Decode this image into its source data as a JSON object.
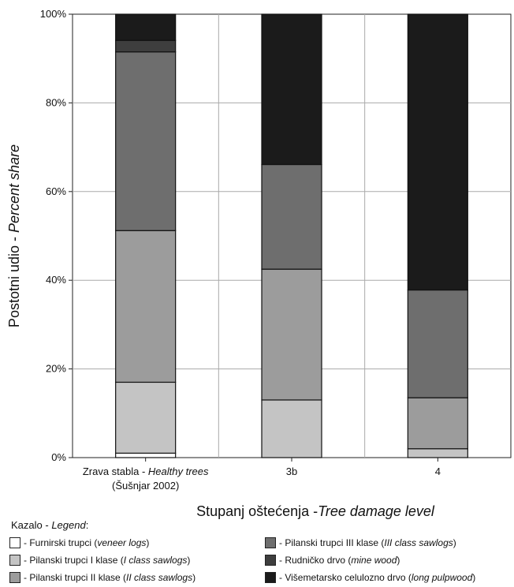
{
  "chart_data": {
    "type": "bar",
    "stacked": true,
    "categories": [
      [
        "Zrava stabla - ",
        "Healthy trees",
        "(Šušnjar 2002)"
      ],
      [
        "3b",
        "",
        ""
      ],
      [
        "4",
        "",
        ""
      ]
    ],
    "category_names": [
      "Zrava stabla - Healthy trees (Šušnjar 2002)",
      "3b",
      "4"
    ],
    "ylim": [
      0,
      100
    ],
    "yticks": [
      0,
      20,
      40,
      60,
      80,
      100
    ],
    "ytick_labels": [
      "0%",
      "20%",
      "40%",
      "60%",
      "80%",
      "100%"
    ],
    "ylabel": {
      "plain": "Postotni udio - ",
      "italic": "Percent share"
    },
    "xlabel": {
      "plain": "Stupanj oštećenja -",
      "italic": "Tree damage level"
    },
    "grid": true,
    "series": [
      {
        "name": "Furnirski trupci (veneer logs)",
        "label_plain": " - Furnirski trupci (",
        "label_italic": "veneer logs",
        "label_end": ")",
        "color": "#ffffff",
        "values": [
          1,
          0,
          0
        ]
      },
      {
        "name": "Pilanski trupci I klase (I class sawlogs)",
        "label_plain": " - Pilanski trupci I klase (",
        "label_italic": "I class sawlogs",
        "label_end": ")",
        "color": "#c4c4c4",
        "values": [
          16,
          13,
          2
        ]
      },
      {
        "name": "Pilanski trupci II klase (II class sawlogs)",
        "label_plain": " - Pilanski trupci II klase (",
        "label_italic": "II class sawlogs",
        "label_end": ")",
        "color": "#9c9c9c",
        "values": [
          34.2,
          29.5,
          11.5
        ]
      },
      {
        "name": "Pilanski trupci III klase (III class sawlogs)",
        "label_plain": " - Pilanski trupci III klase (",
        "label_italic": "III class sawlogs",
        "label_end": ")",
        "color": "#6e6e6e",
        "values": [
          40.3,
          23.6,
          24.3
        ]
      },
      {
        "name": "Rudničko drvo (mine wood)",
        "label_plain": " - Rudničko drvo (",
        "label_italic": "mine wood",
        "label_end": ")",
        "color": "#3e3e3e",
        "values": [
          2.6,
          0,
          0
        ]
      },
      {
        "name": "Višemetarsko celulozno drvo (long pulpwood)",
        "label_plain": " - Višemetarsko celulozno drvo (",
        "label_italic": "long pulpwood",
        "label_end": ")",
        "color": "#1b1b1b",
        "values": [
          5.9,
          33.9,
          62.2
        ]
      }
    ],
    "legend": {
      "title_plain": "Kazalo - ",
      "title_italic": "Legend",
      "title_end": ":",
      "placement": "bottom"
    }
  }
}
